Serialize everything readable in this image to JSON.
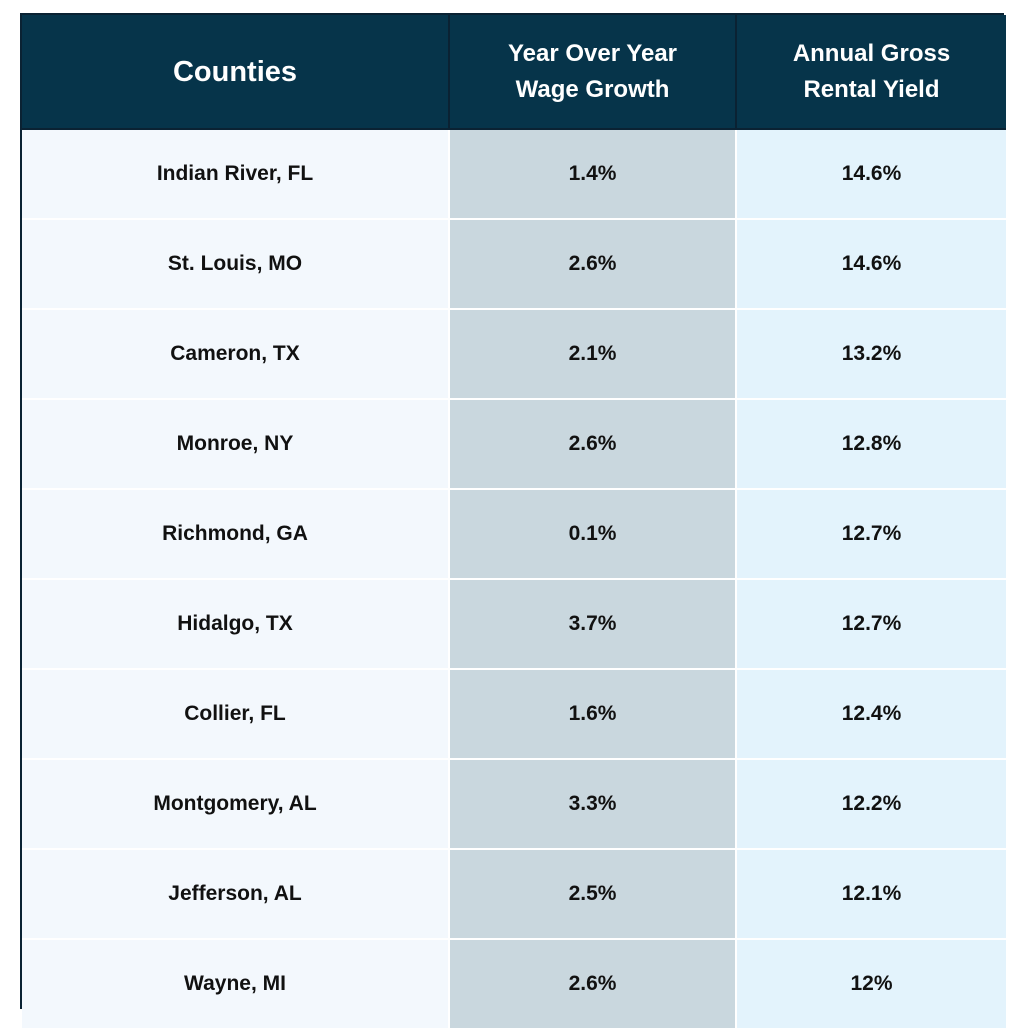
{
  "chart_data": {
    "type": "table",
    "columns": [
      "Counties",
      "Year Over Year\nWage Growth",
      "Annual Gross\nRental Yield"
    ],
    "rows": [
      {
        "county": "Indian River, FL",
        "wage_growth": "1.4%",
        "rental_yield": "14.6%"
      },
      {
        "county": "St. Louis, MO",
        "wage_growth": "2.6%",
        "rental_yield": "14.6%"
      },
      {
        "county": "Cameron, TX",
        "wage_growth": "2.1%",
        "rental_yield": "13.2%"
      },
      {
        "county": "Monroe, NY",
        "wage_growth": "2.6%",
        "rental_yield": "12.8%"
      },
      {
        "county": "Richmond, GA",
        "wage_growth": "0.1%",
        "rental_yield": "12.7%"
      },
      {
        "county": "Hidalgo, TX",
        "wage_growth": "3.7%",
        "rental_yield": "12.7%"
      },
      {
        "county": "Collier, FL",
        "wage_growth": "1.6%",
        "rental_yield": "12.4%"
      },
      {
        "county": "Montgomery, AL",
        "wage_growth": "3.3%",
        "rental_yield": "12.2%"
      },
      {
        "county": "Jefferson, AL",
        "wage_growth": "2.5%",
        "rental_yield": "12.1%"
      },
      {
        "county": "Wayne, MI",
        "wage_growth": "2.6%",
        "rental_yield": "12%"
      }
    ]
  },
  "colors": {
    "header_bg": "#06344a",
    "header_text": "#ffffff",
    "county_col_bg": "#f3f8fd",
    "wage_col_bg": "#c9d7de",
    "yield_col_bg": "#e3f3fc",
    "border": "#0a2233"
  }
}
